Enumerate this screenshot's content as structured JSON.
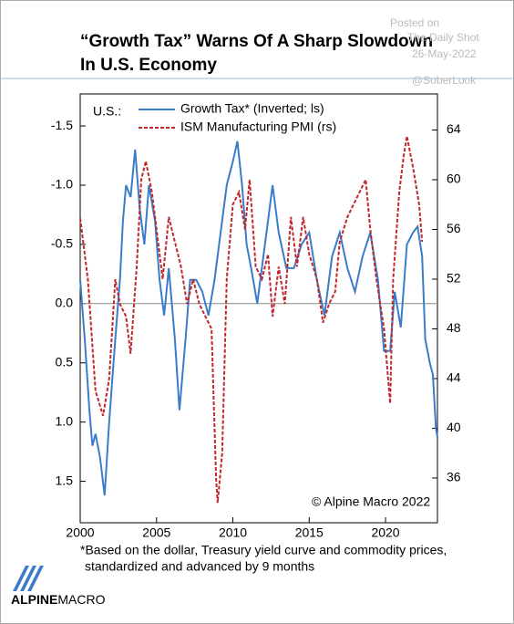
{
  "chart_data": {
    "type": "line",
    "title_lines": [
      "“Growth Tax” Warns Of A Sharp Slowdown",
      "In U.S. Economy"
    ],
    "watermark": [
      "Posted on",
      "The Daily Shot",
      "26-May-2022",
      "@SoberLook"
    ],
    "region_label": "U.S.:",
    "copyright": "© Alpine Macro 2022",
    "footnote": [
      "*Based on the dollar, Treasury yield curve and commodity prices,",
      "standardized and advanced by 9 months"
    ],
    "logo": [
      "ALPINE",
      "MACRO"
    ],
    "xlim": [
      2000,
      2023.4
    ],
    "xticks": [
      2000,
      2005,
      2010,
      2015,
      2020
    ],
    "ylim": [
      1.85,
      -1.77
    ],
    "yticks": [
      -1.5,
      {
        "value": -1.0,
        "label": "-1.0"
      },
      -0.5,
      {
        "value": 0,
        "label": "0.0"
      },
      0.5,
      {
        "value": 1.0,
        "label": "1.0"
      },
      1.5
    ],
    "y2lim": [
      32.4,
      66.9
    ],
    "y2ticks": [
      64,
      60,
      56,
      52,
      48,
      44,
      40,
      36
    ],
    "zero_line": true,
    "series": [
      {
        "name": "Growth Tax* (Inverted; ls)",
        "color": "#3a7cc9",
        "axis": "y",
        "dashed": false,
        "x": [
          2000.0,
          2000.3,
          2000.6,
          2000.8,
          2001.0,
          2001.3,
          2001.6,
          2001.9,
          2002.3,
          2002.6,
          2002.8,
          2003.0,
          2003.3,
          2003.6,
          2003.9,
          2004.2,
          2004.5,
          2004.9,
          2005.2,
          2005.5,
          2005.8,
          2006.2,
          2006.5,
          2006.9,
          2007.2,
          2007.6,
          2008.0,
          2008.4,
          2008.8,
          2009.2,
          2009.6,
          2010.0,
          2010.3,
          2010.6,
          2010.9,
          2011.2,
          2011.6,
          2012.0,
          2012.3,
          2012.6,
          2013.0,
          2013.5,
          2014.0,
          2014.5,
          2015.0,
          2015.5,
          2016.0,
          2016.5,
          2017.0,
          2017.5,
          2018.0,
          2018.5,
          2019.0,
          2019.5,
          2019.9,
          2020.3,
          2020.6,
          2021.0,
          2021.4,
          2021.8,
          2022.1,
          2022.4,
          2022.6,
          2022.9,
          2023.1,
          2023.3,
          2023.4
        ],
        "values": [
          -0.2,
          0.3,
          0.9,
          1.2,
          1.1,
          1.3,
          1.62,
          1.0,
          0.3,
          -0.2,
          -0.7,
          -1.0,
          -0.9,
          -1.3,
          -0.8,
          -0.5,
          -1.0,
          -0.7,
          -0.2,
          0.1,
          -0.3,
          0.3,
          0.9,
          0.3,
          -0.2,
          -0.2,
          -0.1,
          0.1,
          -0.2,
          -0.6,
          -1.0,
          -1.2,
          -1.37,
          -1.0,
          -0.5,
          -0.3,
          0.0,
          -0.4,
          -0.7,
          -1.0,
          -0.6,
          -0.3,
          -0.3,
          -0.5,
          -0.6,
          -0.2,
          0.1,
          -0.4,
          -0.6,
          -0.3,
          -0.1,
          -0.4,
          -0.6,
          -0.2,
          0.4,
          0.4,
          -0.1,
          0.2,
          -0.5,
          -0.6,
          -0.65,
          -0.4,
          0.3,
          0.5,
          0.6,
          1.05,
          1.13
        ]
      },
      {
        "name": "ISM Manufacturing PMI (rs)",
        "color": "#c0272d",
        "axis": "y2",
        "dashed": true,
        "x": [
          2000.0,
          2000.5,
          2001.0,
          2001.5,
          2001.9,
          2002.3,
          2002.6,
          2003.0,
          2003.3,
          2003.7,
          2004.0,
          2004.3,
          2004.7,
          2005.0,
          2005.4,
          2005.8,
          2006.2,
          2006.6,
          2007.0,
          2007.4,
          2007.8,
          2008.2,
          2008.6,
          2008.9,
          2009.0,
          2009.3,
          2009.6,
          2010.0,
          2010.4,
          2010.8,
          2011.1,
          2011.5,
          2011.9,
          2012.3,
          2012.6,
          2013.0,
          2013.4,
          2013.8,
          2014.2,
          2014.6,
          2015.0,
          2015.5,
          2015.9,
          2016.3,
          2016.7,
          2017.0,
          2017.5,
          2017.9,
          2018.3,
          2018.7,
          2019.0,
          2019.4,
          2019.9,
          2020.3,
          2020.5,
          2020.9,
          2021.2,
          2021.4,
          2021.8,
          2022.2,
          2022.4
        ],
        "values": [
          56.9,
          52,
          43,
          41,
          44,
          52,
          50,
          49,
          46,
          53,
          60,
          61.5,
          59,
          56,
          52,
          57,
          55,
          53,
          50,
          52,
          50,
          49,
          48,
          36,
          34,
          38,
          52,
          58,
          59,
          56,
          60,
          53,
          52,
          54,
          49,
          53,
          50,
          57,
          53,
          57,
          54,
          52,
          48.5,
          50,
          51,
          55,
          57,
          58,
          59,
          60,
          56,
          52,
          48,
          42,
          52,
          59,
          62,
          63.5,
          61,
          58,
          55
        ]
      }
    ]
  }
}
